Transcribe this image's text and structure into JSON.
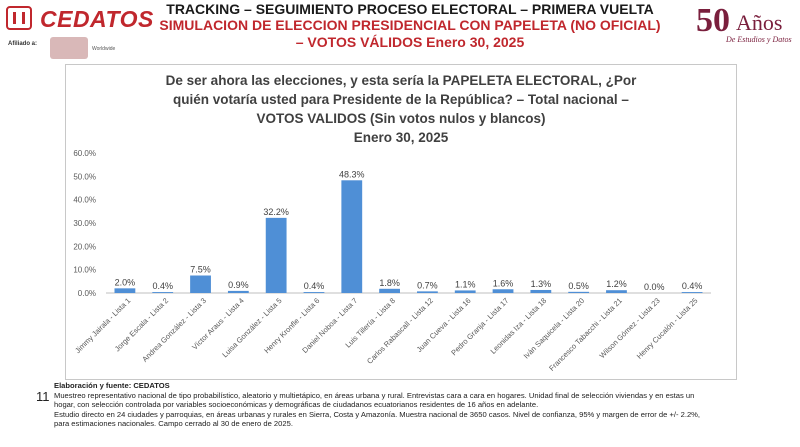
{
  "header": {
    "logo_text": "CEDATOS",
    "affiliate_label": "Afiliado a:",
    "affiliate_name": "Worldwide",
    "title_line1": "TRACKING – SEGUIMIENTO PROCESO ELECTORAL – PRIMERA VUELTA",
    "title_line2": "SIMULACION DE ELECCION PRESIDENCIAL CON PAPELETA (NO OFICIAL)",
    "title_line3": "– VOTOS VÁLIDOS  Enero 30, 2025",
    "anniversary_number": "50",
    "anniversary_word": "Años",
    "anniversary_sub": "De Estudios y Datos",
    "brand_color": "#c0272d",
    "anniversary_color": "#7a1f3d"
  },
  "chart_data": {
    "type": "bar",
    "title_lines": [
      "De ser ahora las elecciones, y esta sería la PAPELETA ELECTORAL, ¿Por",
      "quién votaría usted para Presidente de la República? – Total nacional –",
      "VOTOS VALIDOS (Sin votos nulos y blancos)",
      "Enero 30, 2025"
    ],
    "categories": [
      "Jimmy Jairala - Lista 1",
      "Jorge Escala - Lista 2",
      "Andrea González - Lista 3",
      "Víctor Araus - Lista 4",
      "Luisa González - Lista 5",
      "Henry Kronfle - Lista 6",
      "Daniel Noboa - Lista 7",
      "Luis Tillería - Lista 8",
      "Carlos Rabascall - Lista 12",
      "Juan Cueva - Lista 16",
      "Pedro Granja - Lista 17",
      "Leonidas Iza - Lista 18",
      "Iván Saquicela - Lista 20",
      "Francesco Tabacchi - Lista 21",
      "Wilson Gómez - Lista 23",
      "Henry Cucalón - Lista 25"
    ],
    "values": [
      2.0,
      0.4,
      7.5,
      0.9,
      32.2,
      0.4,
      48.3,
      1.8,
      0.7,
      1.1,
      1.6,
      1.3,
      0.5,
      1.2,
      0.0,
      0.4
    ],
    "value_labels": [
      "2.0%",
      "0.4%",
      "7.5%",
      "0.9%",
      "32.2%",
      "0.4%",
      "48.3%",
      "1.8%",
      "0.7%",
      "1.1%",
      "1.6%",
      "1.3%",
      "0.5%",
      "1.2%",
      "0.0%",
      "0.4%"
    ],
    "y_ticks": [
      "0.0%",
      "10.0%",
      "20.0%",
      "30.0%",
      "40.0%",
      "50.0%",
      "60.0%"
    ],
    "ylim": [
      0,
      60
    ],
    "grid": false,
    "bar_color": "#4f8fd6"
  },
  "footer": {
    "page_number": "11",
    "heading": "Elaboración y fuente: CEDATOS",
    "line1": "Muestreo representativo nacional de tipo probabilístico, aleatorio y multietápico, en áreas urbana y rural.  Entrevistas cara a cara en hogares.  Unidad final de selección viviendas y en estas un",
    "line2": "hogar, con  selección controlada por variables socioeconómicas y demográficas de ciudadanos ecuatorianos residentes de 16 años en adelante.",
    "line3": "Estudio directo en 24 ciudades y parroquias, en áreas urbanas y rurales en Sierra, Costa y Amazonía. Muestra nacional de 3650 casos. Nivel de confianza, 95% y margen  de error de +/- 2.2%,",
    "line4": "para estimaciones nacionales. Campo cerrado al 30 de enero de 2025."
  }
}
